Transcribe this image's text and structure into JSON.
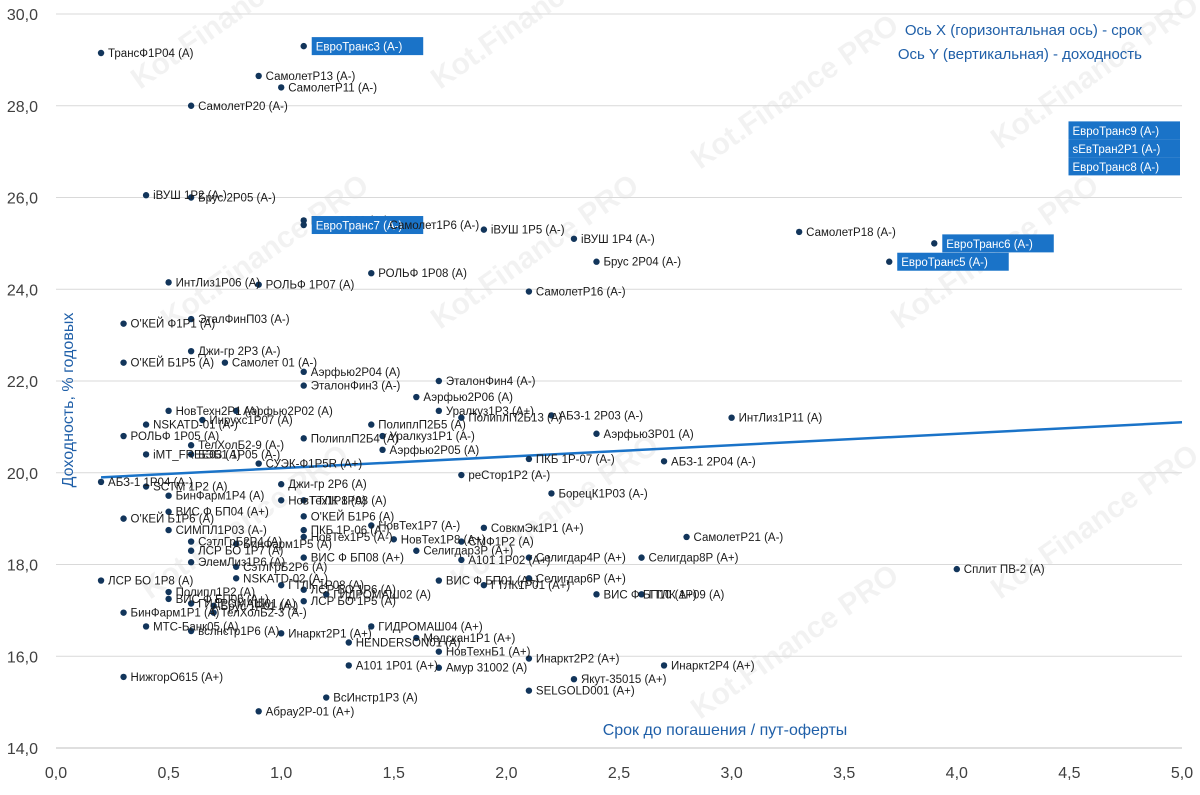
{
  "chart_data": {
    "type": "scatter",
    "title": "",
    "xlabel": "Срок до погашения / пут-оферты",
    "ylabel": "Доходность, % годовых",
    "xlim": [
      0,
      5
    ],
    "ylim": [
      14,
      30
    ],
    "x_ticks": [
      "0,0",
      "0,5",
      "1,0",
      "1,5",
      "2,0",
      "2,5",
      "3,0",
      "3,5",
      "4,0",
      "4,5",
      "5,0"
    ],
    "y_ticks": [
      "14,0",
      "16,0",
      "18,0",
      "20,0",
      "22,0",
      "24,0",
      "26,0",
      "28,0",
      "30,0"
    ],
    "grid": "horizontal",
    "legend": "none",
    "annotation_lines": [
      "Ось X (горизонтальная ось) - срок",
      "Ось Y (вертикальная) - доходность"
    ],
    "trendline": {
      "type": "linear",
      "x": [
        0.2,
        5.0
      ],
      "y": [
        19.9,
        21.1
      ]
    },
    "colors": {
      "point": "#12355b",
      "trend": "#1a73c8",
      "highlight_bg": "#1a73c8",
      "highlight_text": "#ffffff",
      "text": "#1a1a1a",
      "axis_title": "#1f5fa8"
    },
    "watermark": "Kot.Finance PRO",
    "series": [
      {
        "name": "ТрансФ1Р04 (А)",
        "x": 0.2,
        "y": 29.15
      },
      {
        "name": "ЕвроТранс3 (А-)",
        "x": 1.1,
        "y": 29.3,
        "highlight": true
      },
      {
        "name": "СамолетР13 (А-)",
        "x": 0.9,
        "y": 28.65
      },
      {
        "name": "СамолетР11 (А-)",
        "x": 1.0,
        "y": 28.4
      },
      {
        "name": "СамолетР20 (А-)",
        "x": 0.6,
        "y": 28.0
      },
      {
        "name": "ЕвроТранс9 (А-)",
        "x": 4.6,
        "y": 26.7,
        "highlight": true
      },
      {
        "name": "sЕвТран2Р1 (А-)",
        "x": 4.6,
        "y": 26.7,
        "highlight": true
      },
      {
        "name": "ЕвроТранс8 (А-)",
        "x": 4.6,
        "y": 26.7,
        "highlight": true
      },
      {
        "name": "iВУШ 1Р2 (А-)",
        "x": 0.4,
        "y": 26.05
      },
      {
        "name": "Брус 2Р05 (А-)",
        "x": 0.6,
        "y": 26.0
      },
      {
        "name": "Брус 2Р02 (А-)",
        "x": 1.1,
        "y": 25.5
      },
      {
        "name": "ЕвроТранс7 (А-)",
        "x": 1.1,
        "y": 25.4,
        "highlight": true
      },
      {
        "name": "Самолет1Р6 (А-)",
        "x": 1.45,
        "y": 25.4
      },
      {
        "name": "iВУШ 1Р5 (А-)",
        "x": 1.9,
        "y": 25.3
      },
      {
        "name": "iВУШ 1Р4 (А-)",
        "x": 2.3,
        "y": 25.1
      },
      {
        "name": "СамолетР18 (А-)",
        "x": 3.3,
        "y": 25.25
      },
      {
        "name": "ЕвроТранс6 (А-)",
        "x": 3.9,
        "y": 25.0,
        "highlight": true
      },
      {
        "name": "ЕвроТранс5 (А-)",
        "x": 3.7,
        "y": 24.6,
        "highlight": true
      },
      {
        "name": "Брус 2Р04 (А-)",
        "x": 2.4,
        "y": 24.6
      },
      {
        "name": "РОЛЬФ 1Р08 (А)",
        "x": 1.4,
        "y": 24.35
      },
      {
        "name": "ИнтЛиз1Р06 (А)",
        "x": 0.5,
        "y": 24.15
      },
      {
        "name": "РОЛЬФ 1Р07 (А)",
        "x": 0.9,
        "y": 24.1
      },
      {
        "name": "СамолетР16 (А-)",
        "x": 2.1,
        "y": 23.95
      },
      {
        "name": "ЭталФинП03 (А-)",
        "x": 0.6,
        "y": 23.35
      },
      {
        "name": "О'КЕЙ Ф1Р1 (А)",
        "x": 0.3,
        "y": 23.25
      },
      {
        "name": "Джи-гр 2Р3 (А-)",
        "x": 0.6,
        "y": 22.65
      },
      {
        "name": "О'КЕЙ Б1Р5 (А)",
        "x": 0.3,
        "y": 22.4
      },
      {
        "name": "Самолет 01 (А-)",
        "x": 0.75,
        "y": 22.4
      },
      {
        "name": "Аэрфью2Р04 (А)",
        "x": 1.1,
        "y": 22.2
      },
      {
        "name": "ЭталонФин4 (А-)",
        "x": 1.7,
        "y": 22.0
      },
      {
        "name": "ЭталонФин3 (А-)",
        "x": 1.1,
        "y": 21.9
      },
      {
        "name": "Аэрфью2Р06 (А)",
        "x": 1.6,
        "y": 21.65
      },
      {
        "name": "НовТехн2Р1 (А)",
        "x": 0.5,
        "y": 21.35
      },
      {
        "name": "Аэрфью2Р02 (А)",
        "x": 0.8,
        "y": 21.35
      },
      {
        "name": "Уралкуз1Р3 (А+)",
        "x": 1.7,
        "y": 21.35
      },
      {
        "name": "АБЗ-1 2Р03 (А-)",
        "x": 2.2,
        "y": 21.25
      },
      {
        "name": "ПолиплП2Б13 (А)",
        "x": 1.8,
        "y": 21.2
      },
      {
        "name": "Инрухс1Р07 (А)",
        "x": 0.65,
        "y": 21.15
      },
      {
        "name": "ИнтЛиз1Р11 (А)",
        "x": 3.0,
        "y": 21.2
      },
      {
        "name": "NSKATD-01 (А-)",
        "x": 0.4,
        "y": 21.05
      },
      {
        "name": "ПолиплП2Б5 (А)",
        "x": 1.4,
        "y": 21.05
      },
      {
        "name": "РОЛЬФ 1Р05 (А)",
        "x": 0.3,
        "y": 20.8
      },
      {
        "name": "ПолиплП2Б4 (А)",
        "x": 1.1,
        "y": 20.75
      },
      {
        "name": "Уралкуз1Р1 (А-)",
        "x": 1.45,
        "y": 20.8
      },
      {
        "name": "АэрфьюЗР01 (А)",
        "x": 2.4,
        "y": 20.85
      },
      {
        "name": "ТелХолБ2-9 (А-)",
        "x": 0.6,
        "y": 20.6
      },
      {
        "name": "Аэрфью2Р05 (А)",
        "x": 1.45,
        "y": 20.5
      },
      {
        "name": "iМТ_FREE03 (А)",
        "x": 0.4,
        "y": 20.4
      },
      {
        "name": "БЭБ1 1Р05 (А-)",
        "x": 0.6,
        "y": 20.4
      },
      {
        "name": "ПКБ 1Р-07 (А-)",
        "x": 2.1,
        "y": 20.3
      },
      {
        "name": "АБЗ-1 2Р04 (А-)",
        "x": 2.7,
        "y": 20.25
      },
      {
        "name": "СУЭК-Ф1Р5R (А+)",
        "x": 0.9,
        "y": 20.2
      },
      {
        "name": "реСтор1Р2 (А-)",
        "x": 1.8,
        "y": 19.95
      },
      {
        "name": "АБЗ-1 1Р04 (А-)",
        "x": 0.2,
        "y": 19.8
      },
      {
        "name": "SСТМ 1Р2 (А)",
        "x": 0.4,
        "y": 19.7
      },
      {
        "name": "Джи-гр 2Р6 (А)",
        "x": 1.0,
        "y": 19.75
      },
      {
        "name": "БорецК1Р03 (А-)",
        "x": 2.2,
        "y": 19.55
      },
      {
        "name": "БинФарм1Р4 (А)",
        "x": 0.5,
        "y": 19.5
      },
      {
        "name": "НовТех1Р8 (А)",
        "x": 1.0,
        "y": 19.4
      },
      {
        "name": "ГТЛК 1Р08 (А)",
        "x": 1.1,
        "y": 19.4
      },
      {
        "name": "ВИС Ф БП04 (А+)",
        "x": 0.5,
        "y": 19.15
      },
      {
        "name": "О'КЕЙ Б1Р6 (А)",
        "x": 1.1,
        "y": 19.05
      },
      {
        "name": "О'КЕЙ Б1Р6 (А)",
        "x": 0.3,
        "y": 19.0
      },
      {
        "name": "СИМПЛ1Р03 (А-)",
        "x": 0.5,
        "y": 18.75
      },
      {
        "name": "НовТех1Р7 (А-)",
        "x": 1.4,
        "y": 18.85
      },
      {
        "name": "ПКБ 1Р-06 (А-)",
        "x": 1.1,
        "y": 18.75
      },
      {
        "name": "СовкмЭк1Р1 (А+)",
        "x": 1.9,
        "y": 18.8
      },
      {
        "name": "НовТех1Р5 (А-)",
        "x": 1.1,
        "y": 18.6
      },
      {
        "name": "НовТех1Р8 (А+)",
        "x": 1.5,
        "y": 18.55
      },
      {
        "name": "СамолетР21 (А-)",
        "x": 2.8,
        "y": 18.6
      },
      {
        "name": "СэтлГрБ2Р4 (А)",
        "x": 0.6,
        "y": 18.5
      },
      {
        "name": "БинФарм1Р5 (А)",
        "x": 0.8,
        "y": 18.45
      },
      {
        "name": "СМФ1Р2 (А)",
        "x": 1.8,
        "y": 18.5
      },
      {
        "name": "ЛСР БО 1Р7 (А)",
        "x": 0.6,
        "y": 18.3
      },
      {
        "name": "Селигдар3Р (А+)",
        "x": 1.6,
        "y": 18.3
      },
      {
        "name": "ВИС Ф БП08 (А+)",
        "x": 1.1,
        "y": 18.15
      },
      {
        "name": "А101 1Р02 (А+)",
        "x": 1.8,
        "y": 18.1
      },
      {
        "name": "Селигдар4Р (А+)",
        "x": 2.1,
        "y": 18.15
      },
      {
        "name": "Селигдар8Р (А+)",
        "x": 2.6,
        "y": 18.15
      },
      {
        "name": "ЭлемЛиз1Р6 (А)",
        "x": 0.6,
        "y": 18.05
      },
      {
        "name": "СэтлГрБ2Р6 (А)",
        "x": 0.8,
        "y": 17.95
      },
      {
        "name": "Сплит ПВ-2 (А)",
        "x": 4.0,
        "y": 17.9
      },
      {
        "name": "ЛСР БО 1Р8 (А)",
        "x": 0.2,
        "y": 17.65
      },
      {
        "name": "NSKATD-02 (А-)",
        "x": 0.8,
        "y": 17.7
      },
      {
        "name": "ВИС Ф БП01 (А+)",
        "x": 1.7,
        "y": 17.65
      },
      {
        "name": "Селигдар6Р (А+)",
        "x": 2.1,
        "y": 17.7
      },
      {
        "name": "ГТЛК 1Р08 (А)",
        "x": 1.0,
        "y": 17.55
      },
      {
        "name": "ГТЛК1Р01 (А+)",
        "x": 1.9,
        "y": 17.55
      },
      {
        "name": "ЛСР БО 1Р6 (А)",
        "x": 1.1,
        "y": 17.45
      },
      {
        "name": "ГИДРОМАШ02 (А)",
        "x": 1.2,
        "y": 17.35
      },
      {
        "name": "ВИС Ф БП10 (А+)",
        "x": 2.4,
        "y": 17.35
      },
      {
        "name": "ГТЛК 1Р09 (А)",
        "x": 2.6,
        "y": 17.35
      },
      {
        "name": "Полипл1Р2 (А)",
        "x": 0.5,
        "y": 17.4
      },
      {
        "name": "ВИС Ф БП05 (А+)",
        "x": 0.5,
        "y": 17.25
      },
      {
        "name": "ЛСР БО 1Р5 (А)",
        "x": 1.1,
        "y": 17.2
      },
      {
        "name": "ГИДРОМАШ01 (А)",
        "x": 0.6,
        "y": 17.15
      },
      {
        "name": "Брус 1Р01 (А-)",
        "x": 0.7,
        "y": 17.1
      },
      {
        "name": "БинФарм1Р1 (А)",
        "x": 0.3,
        "y": 16.95
      },
      {
        "name": "ТелХолБ2-3 (А-)",
        "x": 0.7,
        "y": 16.95
      },
      {
        "name": "МТС-Банк05 (А)",
        "x": 0.4,
        "y": 16.65
      },
      {
        "name": "ГИДРОМАШ04 (А+)",
        "x": 1.4,
        "y": 16.65
      },
      {
        "name": "вслнстр1Р6 (А)",
        "x": 0.6,
        "y": 16.55
      },
      {
        "name": "Инаркт2Р1 (А+)",
        "x": 1.0,
        "y": 16.5
      },
      {
        "name": "Медскан1Р1 (А+)",
        "x": 1.6,
        "y": 16.4
      },
      {
        "name": "HENDERSON01 (А)",
        "x": 1.3,
        "y": 16.3
      },
      {
        "name": "НовТехнБ1 (А+)",
        "x": 1.7,
        "y": 16.1
      },
      {
        "name": "Инаркт2Р2 (А+)",
        "x": 2.1,
        "y": 15.95
      },
      {
        "name": "А101 1Р01 (А+)",
        "x": 1.3,
        "y": 15.8
      },
      {
        "name": "Амур 31002 (А)",
        "x": 1.7,
        "y": 15.75
      },
      {
        "name": "Инаркт2Р4 (А+)",
        "x": 2.7,
        "y": 15.8
      },
      {
        "name": "НижгорО615 (А+)",
        "x": 0.3,
        "y": 15.55
      },
      {
        "name": "Якут-35015 (А+)",
        "x": 2.3,
        "y": 15.5
      },
      {
        "name": "SELGOLD001 (А+)",
        "x": 2.1,
        "y": 15.25
      },
      {
        "name": "ВсИнстр1Р3 (А)",
        "x": 1.2,
        "y": 15.1
      },
      {
        "name": "Абрау2Р-01 (А+)",
        "x": 0.9,
        "y": 14.8
      }
    ]
  }
}
